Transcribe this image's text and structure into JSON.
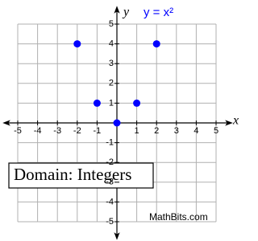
{
  "chart_data": {
    "type": "scatter",
    "title": "y = x²",
    "x_label": "x",
    "y_label": "y",
    "x": [
      -2,
      -1,
      0,
      1,
      2
    ],
    "values": [
      4,
      1,
      0,
      1,
      4
    ],
    "color": "#0000ff",
    "xlim": [
      -5,
      5
    ],
    "ylim": [
      -5,
      5
    ],
    "xticks": [
      -5,
      -4,
      -3,
      -2,
      -1,
      1,
      2,
      3,
      4,
      5
    ],
    "yticks": [
      -5,
      -4,
      -3,
      -2,
      -1,
      1,
      2,
      3,
      4,
      5
    ],
    "grid": true,
    "annotation": "Domain:  Integers",
    "credit": "MathBits.com"
  }
}
